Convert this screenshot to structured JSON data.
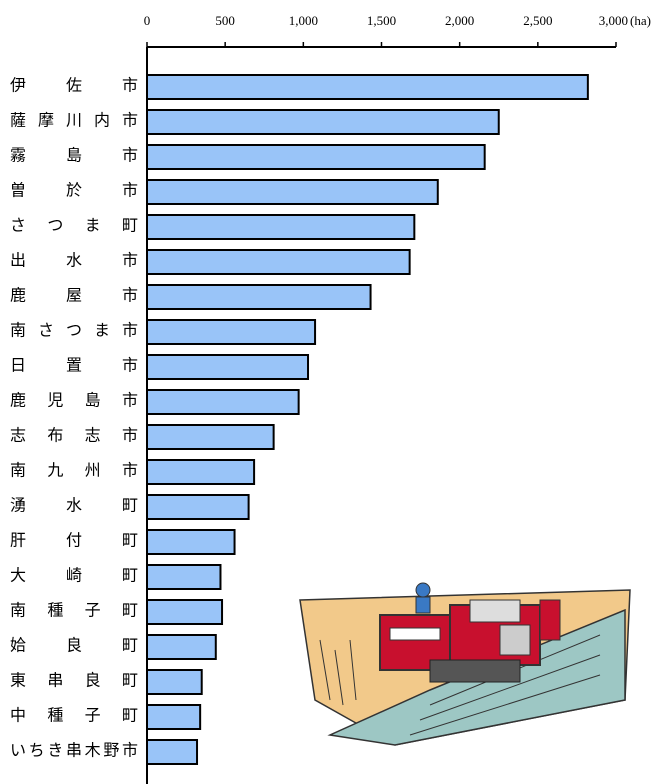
{
  "chart_data": {
    "type": "bar",
    "orientation": "horizontal",
    "categories": [
      "伊佐市",
      "薩摩川内市",
      "霧島市",
      "曽於市",
      "さつま町",
      "出水市",
      "鹿屋市",
      "南さつま市",
      "日置市",
      "鹿児島市",
      "志布志市",
      "南九州市",
      "湧水町",
      "肝付町",
      "大崎町",
      "南種子町",
      "姶良町",
      "東串良町",
      "中種子町",
      "いちき串木野市"
    ],
    "values": [
      2820,
      2250,
      2160,
      1860,
      1710,
      1680,
      1430,
      1075,
      1030,
      970,
      810,
      685,
      650,
      560,
      470,
      480,
      440,
      350,
      340,
      320
    ],
    "color": "#99c4f8",
    "xlim": [
      0,
      3000
    ],
    "xticks": [
      0,
      {
        "value": 500,
        "label": "500"
      },
      {
        "value": 1000,
        "label": "1,000"
      },
      {
        "value": 1500,
        "label": "1,500"
      },
      {
        "value": 2000,
        "label": "2,000"
      },
      {
        "value": 2500,
        "label": "2,500"
      },
      {
        "value": 3000,
        "label": "3,000"
      }
    ],
    "unit": "(ha)"
  }
}
